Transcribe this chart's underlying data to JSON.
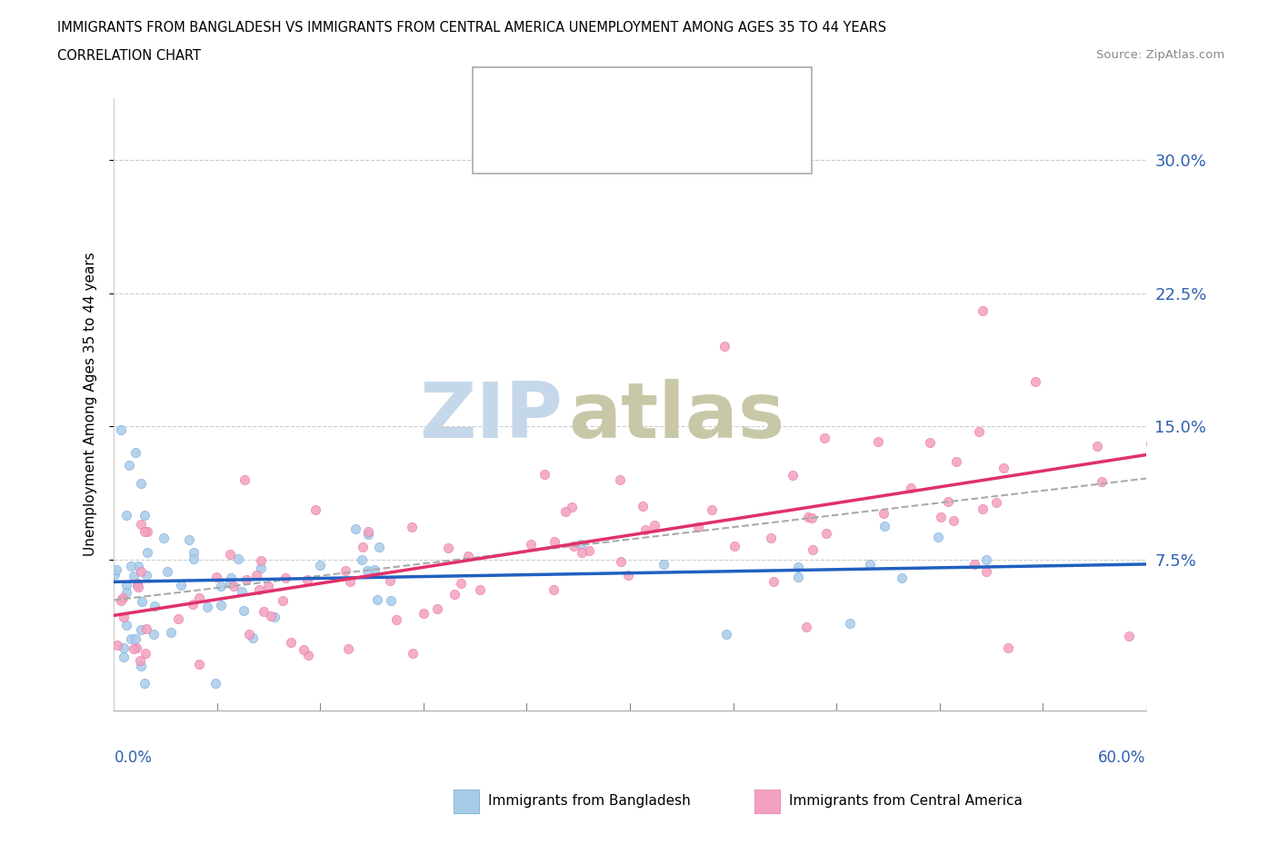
{
  "title_line1": "IMMIGRANTS FROM BANGLADESH VS IMMIGRANTS FROM CENTRAL AMERICA UNEMPLOYMENT AMONG AGES 35 TO 44 YEARS",
  "title_line2": "CORRELATION CHART",
  "source": "Source: ZipAtlas.com",
  "ylabel": "Unemployment Among Ages 35 to 44 years",
  "ytick_values": [
    0.075,
    0.15,
    0.225,
    0.3
  ],
  "xlim": [
    0.0,
    0.6
  ],
  "ylim": [
    -0.01,
    0.335
  ],
  "color_bangladesh": "#a8cce8",
  "color_central_america": "#f4a0c0",
  "color_trendline_bangladesh": "#2060c0",
  "color_trendline_central_america": "#e0306a",
  "color_dashed": "#aaaaaa",
  "watermark_zip": "ZIP",
  "watermark_atlas": "atlas",
  "watermark_color_zip": "#c5d8ea",
  "watermark_color_atlas": "#c8c8a8",
  "seed": 1234
}
